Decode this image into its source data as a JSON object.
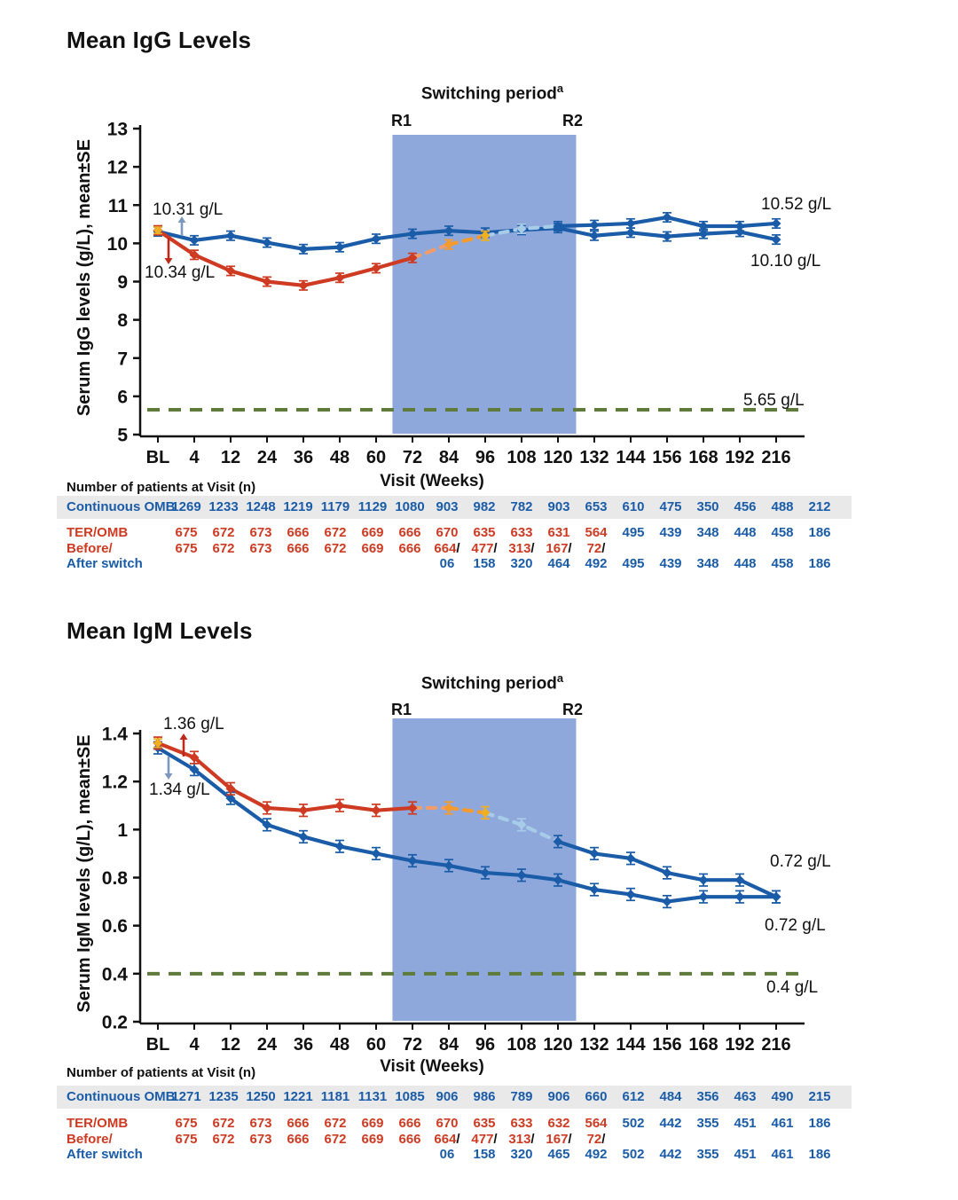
{
  "colors": {
    "blue": "#1A5CA8",
    "red": "#CE3A22",
    "salmon": "#F29C6B",
    "orange": "#F59B2E",
    "yellow": "#EFAF23",
    "lightblue": "#A7CCE8",
    "shade": "#8FA8DC",
    "green": "#5E7B3B",
    "band": "#E9E9E9",
    "arrow_blue": "#7C98BC",
    "arrow_red": "#BE2A1A",
    "black": "#111111"
  },
  "charts": [
    {
      "title": "Mean IgG Levels",
      "switching": {
        "label": "Switching period",
        "sup": "a",
        "r1": "R1",
        "r2": "R2"
      },
      "xlabel": "Visit (Weeks)",
      "ylabel": "Serum IgG levels (g/L), mean±SE",
      "annotations": {
        "bl_top": "10.31 g/L",
        "bl_bottom": "10.34 g/L",
        "end_top": "10.52 g/L",
        "end_bottom": "10.10 g/L",
        "threshold": "5.65 g/L"
      },
      "chart_data": {
        "type": "line",
        "x": [
          "BL",
          "4",
          "12",
          "24",
          "36",
          "48",
          "60",
          "72",
          "84",
          "96",
          "108",
          "120",
          "132",
          "144",
          "156",
          "168",
          "192",
          "216"
        ],
        "ylim": [
          5,
          13
        ],
        "yticks": [
          5,
          6,
          7,
          8,
          9,
          10,
          11,
          12,
          13
        ],
        "ytick_labels": [
          "5",
          "6",
          "7",
          "8",
          "9",
          "10",
          "11",
          "12",
          "13"
        ],
        "threshold": 5.65,
        "switch_region_x": [
          6.45,
          11.5
        ],
        "se_approx": 0.12,
        "start_marker": {
          "series_index": 1,
          "color": "yellow"
        },
        "series": [
          {
            "name": "Continuous OMB",
            "end_label": "10.10 g/L",
            "values": [
              10.31,
              10.08,
              10.2,
              10.02,
              9.85,
              9.9,
              10.12,
              10.25,
              10.33,
              10.28,
              10.35,
              10.4,
              10.2,
              10.28,
              10.18,
              10.25,
              10.3,
              10.1
            ],
            "marker_colors": "blue",
            "segments": [
              {
                "from": 0,
                "to": 17,
                "style": "solid",
                "color": "blue"
              }
            ]
          },
          {
            "name": "TER/OMB",
            "end_label": "10.52 g/L",
            "values": [
              10.34,
              9.7,
              9.28,
              9.0,
              8.9,
              9.1,
              9.35,
              9.62,
              9.97,
              10.2,
              10.38,
              10.45,
              10.48,
              10.52,
              10.68,
              10.45,
              10.45,
              10.52
            ],
            "marker_colors": [
              "red",
              "red",
              "red",
              "red",
              "red",
              "red",
              "red",
              "red",
              "orange",
              "yellow",
              "lightblue",
              "blue",
              "blue",
              "blue",
              "blue",
              "blue",
              "blue",
              "blue"
            ],
            "segments": [
              {
                "from": 0,
                "to": 7,
                "style": "solid",
                "color": "red"
              },
              {
                "from": 7,
                "to": 8,
                "style": "dashed",
                "color": "salmon"
              },
              {
                "from": 8,
                "to": 9,
                "style": "dashed",
                "color": "orange"
              },
              {
                "from": 9,
                "to": 11,
                "style": "dashed",
                "color": "lightblue"
              },
              {
                "from": 11,
                "to": 17,
                "style": "solid",
                "color": "blue"
              }
            ]
          }
        ]
      },
      "patients_table": {
        "heading": "Number of patients at Visit (n)",
        "rows": [
          {
            "type": "single",
            "band": true,
            "label": "Continuous OMB",
            "label_color": "blue",
            "values": [
              "1269",
              "1233",
              "1248",
              "1219",
              "1179",
              "1129",
              "1080",
              "903",
              "982",
              "782",
              "903",
              "653",
              "610",
              "475",
              "350",
              "456",
              "488",
              "212"
            ],
            "colors": "blue"
          },
          {
            "type": "single",
            "label": "TER/OMB",
            "label_color": "red",
            "values": [
              "675",
              "672",
              "673",
              "666",
              "672",
              "669",
              "666",
              "670",
              "635",
              "633",
              "631",
              "564",
              "495",
              "439",
              "348",
              "448",
              "458",
              "186"
            ],
            "colors": [
              "red",
              "red",
              "red",
              "red",
              "red",
              "red",
              "red",
              "red",
              "red",
              "red",
              "red",
              "red",
              "blue",
              "blue",
              "blue",
              "blue",
              "blue",
              "blue"
            ]
          },
          {
            "type": "split",
            "label_top": "Before/",
            "label_top_color": "red",
            "label_bottom": "After switch",
            "label_bottom_color": "blue",
            "cells": [
              {
                "top": "675"
              },
              {
                "top": "672"
              },
              {
                "top": "673"
              },
              {
                "top": "666"
              },
              {
                "top": "672"
              },
              {
                "top": "669"
              },
              {
                "top": "666"
              },
              {
                "top": "664",
                "slash": true,
                "bottom": "06"
              },
              {
                "top": "477",
                "slash": true,
                "bottom": "158"
              },
              {
                "top": "313",
                "slash": true,
                "bottom": "320"
              },
              {
                "top": "167",
                "slash": true,
                "bottom": "464"
              },
              {
                "top": "72",
                "slash": true,
                "bottom": "492"
              },
              {
                "bottom": "495"
              },
              {
                "bottom": "439"
              },
              {
                "bottom": "348"
              },
              {
                "bottom": "448"
              },
              {
                "bottom": "458"
              },
              {
                "bottom": "186"
              }
            ]
          }
        ]
      }
    },
    {
      "title": "Mean IgM Levels",
      "switching": {
        "label": "Switching period",
        "sup": "a",
        "r1": "R1",
        "r2": "R2"
      },
      "xlabel": "Visit (Weeks)",
      "ylabel": "Serum IgM levels (g/L), mean±SE",
      "annotations": {
        "bl_top": "1.36 g/L",
        "bl_bottom": "1.34 g/L",
        "end_top": "0.72 g/L",
        "end_bottom": "0.72 g/L",
        "threshold": "0.4 g/L"
      },
      "chart_data": {
        "type": "line",
        "x": [
          "BL",
          "4",
          "12",
          "24",
          "36",
          "48",
          "60",
          "72",
          "84",
          "96",
          "108",
          "120",
          "132",
          "144",
          "156",
          "168",
          "192",
          "216"
        ],
        "ylim": [
          0.2,
          1.4
        ],
        "yticks": [
          0.2,
          0.4,
          0.6,
          0.8,
          1,
          1.2,
          1.4
        ],
        "ytick_labels": [
          "0.2",
          "0.4",
          "0.6",
          "0.8",
          "1",
          "1.2",
          "1.4"
        ],
        "threshold": 0.4,
        "switch_region_x": [
          6.45,
          11.5
        ],
        "se_approx": 0.025,
        "start_marker": {
          "series_index": 1,
          "color": "yellow"
        },
        "series": [
          {
            "name": "Continuous OMB",
            "end_label": "0.72 g/L",
            "values": [
              1.34,
              1.25,
              1.13,
              1.02,
              0.97,
              0.93,
              0.9,
              0.87,
              0.85,
              0.82,
              0.81,
              0.79,
              0.75,
              0.73,
              0.7,
              0.72,
              0.72,
              0.72
            ],
            "marker_colors": "blue",
            "segments": [
              {
                "from": 0,
                "to": 17,
                "style": "solid",
                "color": "blue"
              }
            ]
          },
          {
            "name": "TER/OMB",
            "end_label": "0.72 g/L",
            "values": [
              1.36,
              1.3,
              1.17,
              1.09,
              1.08,
              1.1,
              1.08,
              1.09,
              1.09,
              1.07,
              1.02,
              0.95,
              0.9,
              0.88,
              0.82,
              0.79,
              0.79,
              0.72
            ],
            "marker_colors": [
              "red",
              "red",
              "red",
              "red",
              "red",
              "red",
              "red",
              "red",
              "orange",
              "yellow",
              "lightblue",
              "blue",
              "blue",
              "blue",
              "blue",
              "blue",
              "blue",
              "blue"
            ],
            "segments": [
              {
                "from": 0,
                "to": 7,
                "style": "solid",
                "color": "red"
              },
              {
                "from": 7,
                "to": 8,
                "style": "dashed",
                "color": "salmon"
              },
              {
                "from": 8,
                "to": 9,
                "style": "dashed",
                "color": "orange"
              },
              {
                "from": 9,
                "to": 11,
                "style": "dashed",
                "color": "lightblue"
              },
              {
                "from": 11,
                "to": 17,
                "style": "solid",
                "color": "blue"
              }
            ]
          }
        ]
      },
      "patients_table": {
        "heading": "Number of patients at Visit (n)",
        "rows": [
          {
            "type": "single",
            "band": true,
            "label": "Continuous OMB",
            "label_color": "blue",
            "values": [
              "1271",
              "1235",
              "1250",
              "1221",
              "1181",
              "1131",
              "1085",
              "906",
              "986",
              "789",
              "906",
              "660",
              "612",
              "484",
              "356",
              "463",
              "490",
              "215"
            ],
            "colors": "blue"
          },
          {
            "type": "single",
            "label": "TER/OMB",
            "label_color": "red",
            "values": [
              "675",
              "672",
              "673",
              "666",
              "672",
              "669",
              "666",
              "670",
              "635",
              "633",
              "632",
              "564",
              "502",
              "442",
              "355",
              "451",
              "461",
              "186"
            ],
            "colors": [
              "red",
              "red",
              "red",
              "red",
              "red",
              "red",
              "red",
              "red",
              "red",
              "red",
              "red",
              "red",
              "blue",
              "blue",
              "blue",
              "blue",
              "blue",
              "blue"
            ]
          },
          {
            "type": "split",
            "label_top": "Before/",
            "label_top_color": "red",
            "label_bottom": "After switch",
            "label_bottom_color": "blue",
            "cells": [
              {
                "top": "675"
              },
              {
                "top": "672"
              },
              {
                "top": "673"
              },
              {
                "top": "666"
              },
              {
                "top": "672"
              },
              {
                "top": "669"
              },
              {
                "top": "666"
              },
              {
                "top": "664",
                "slash": true,
                "bottom": "06"
              },
              {
                "top": "477",
                "slash": true,
                "bottom": "158"
              },
              {
                "top": "313",
                "slash": true,
                "bottom": "320"
              },
              {
                "top": "167",
                "slash": true,
                "bottom": "465"
              },
              {
                "top": "72",
                "slash": true,
                "bottom": "492"
              },
              {
                "bottom": "502"
              },
              {
                "bottom": "442"
              },
              {
                "bottom": "355"
              },
              {
                "bottom": "451"
              },
              {
                "bottom": "461"
              },
              {
                "bottom": "186"
              }
            ]
          }
        ]
      }
    }
  ]
}
